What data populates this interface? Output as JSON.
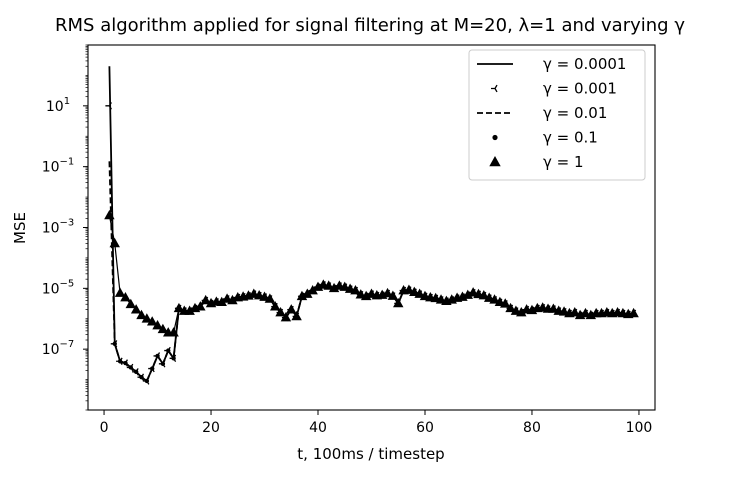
{
  "chart_data": {
    "type": "line",
    "title": "RMS algorithm applied for signal filtering at M=20, λ=1 and varying γ",
    "xlabel": "t, 100ms / timestep",
    "ylabel": "MSE",
    "xlim": [
      -3,
      103
    ],
    "ylim": [
      1e-09,
      1000
    ],
    "yscale": "log",
    "x_ticks": [
      0,
      20,
      40,
      60,
      80,
      100
    ],
    "x_tick_labels": [
      "0",
      "20",
      "40",
      "60",
      "80",
      "100"
    ],
    "y_ticks": [
      1e-07,
      1e-05,
      0.001,
      0.1,
      10
    ],
    "y_tick_bases": [
      "10",
      "10",
      "10",
      "10",
      "10"
    ],
    "y_tick_exponents": [
      "−7",
      "−5",
      "−3",
      "−1",
      "1"
    ],
    "grid": false,
    "legend_position": "top-right",
    "x": [
      1,
      2,
      3,
      4,
      5,
      6,
      7,
      8,
      9,
      10,
      11,
      12,
      13,
      14,
      15,
      16,
      17,
      18,
      19,
      20,
      21,
      22,
      23,
      24,
      25,
      26,
      27,
      28,
      29,
      30,
      31,
      32,
      33,
      34,
      35,
      36,
      37,
      38,
      39,
      40,
      41,
      42,
      43,
      44,
      45,
      46,
      47,
      48,
      49,
      50,
      51,
      52,
      53,
      54,
      55,
      56,
      57,
      58,
      59,
      60,
      61,
      62,
      63,
      64,
      65,
      66,
      67,
      68,
      69,
      70,
      71,
      72,
      73,
      74,
      75,
      76,
      77,
      78,
      79,
      80,
      81,
      82,
      83,
      84,
      85,
      86,
      87,
      88,
      89,
      90,
      91,
      92,
      93,
      94,
      95,
      96,
      97,
      98,
      99
    ],
    "series": [
      {
        "name": "γ = 0.0001",
        "style": "solid",
        "values": [
          200,
          1.5e-07,
          4e-08,
          3.5e-08,
          2.5e-08,
          1.8e-08,
          1.2e-08,
          9e-09,
          2.3e-08,
          6e-08,
          3.3e-08,
          9e-08,
          5e-08,
          2.2e-06,
          1.8e-06,
          1.8e-06,
          2.2e-06,
          2.5e-06,
          4e-06,
          3.2e-06,
          3.6e-06,
          3.5e-06,
          4.5e-06,
          4e-06,
          5e-06,
          5.3e-06,
          5.7e-06,
          6.5e-06,
          5.8e-06,
          5.2e-06,
          4.5e-06,
          2.5e-06,
          1.6e-06,
          1.1e-06,
          2e-06,
          1.2e-06,
          5.5e-06,
          6.5e-06,
          8.5e-06,
          1.1e-05,
          1.3e-05,
          1.2e-05,
          1e-05,
          1.2e-05,
          1.1e-05,
          9.5e-06,
          8.5e-06,
          6.2e-06,
          5.5e-06,
          6.5e-06,
          5.8e-06,
          6e-06,
          6.8e-06,
          5.6e-06,
          3.2e-06,
          8.5e-06,
          8.8e-06,
          7.5e-06,
          6.5e-06,
          5.5e-06,
          5e-06,
          4.7e-06,
          4.2e-06,
          3.8e-06,
          4.2e-06,
          4.8e-06,
          5.2e-06,
          6e-06,
          7.2e-06,
          6.4e-06,
          5.8e-06,
          4.8e-06,
          4.2e-06,
          3.5e-06,
          3.1e-06,
          2.2e-06,
          1.8e-06,
          1.6e-06,
          2e-06,
          1.9e-06,
          2.2e-06,
          2.3e-06,
          2.1e-06,
          2.1e-06,
          1.8e-06,
          1.7e-06,
          1.5e-06,
          1.6e-06,
          1.3e-06,
          1.5e-06,
          1.3e-06,
          1.5e-06,
          1.5e-06,
          1.6e-06,
          1.5e-06,
          1.6e-06,
          1.5e-06,
          1.4e-06,
          1.5e-06
        ]
      },
      {
        "name": "γ = 0.001",
        "style": "tri_left",
        "values": [
          10,
          1.5e-07,
          4e-08,
          3.5e-08,
          2.5e-08,
          1.8e-08,
          1.2e-08,
          9e-09,
          2.3e-08,
          6e-08,
          3.3e-08,
          9e-08,
          5e-08,
          2.2e-06,
          1.8e-06,
          1.8e-06,
          2.2e-06,
          2.5e-06,
          4e-06,
          3.2e-06,
          3.6e-06,
          3.5e-06,
          4.5e-06,
          4e-06,
          5e-06,
          5.3e-06,
          5.7e-06,
          6.5e-06,
          5.8e-06,
          5.2e-06,
          4.5e-06,
          2.5e-06,
          1.6e-06,
          1.1e-06,
          2e-06,
          1.2e-06,
          5.5e-06,
          6.5e-06,
          8.5e-06,
          1.1e-05,
          1.3e-05,
          1.2e-05,
          1e-05,
          1.2e-05,
          1.1e-05,
          9.5e-06,
          8.5e-06,
          6.2e-06,
          5.5e-06,
          6.5e-06,
          5.8e-06,
          6e-06,
          6.8e-06,
          5.6e-06,
          3.2e-06,
          8.5e-06,
          8.8e-06,
          7.5e-06,
          6.5e-06,
          5.5e-06,
          5e-06,
          4.7e-06,
          4.2e-06,
          3.8e-06,
          4.2e-06,
          4.8e-06,
          5.2e-06,
          6e-06,
          7.2e-06,
          6.4e-06,
          5.8e-06,
          4.8e-06,
          4.2e-06,
          3.5e-06,
          3.1e-06,
          2.2e-06,
          1.8e-06,
          1.6e-06,
          2e-06,
          1.9e-06,
          2.2e-06,
          2.3e-06,
          2.1e-06,
          2.1e-06,
          1.8e-06,
          1.7e-06,
          1.5e-06,
          1.6e-06,
          1.3e-06,
          1.5e-06,
          1.3e-06,
          1.5e-06,
          1.5e-06,
          1.6e-06,
          1.5e-06,
          1.6e-06,
          1.5e-06,
          1.4e-06,
          1.5e-06
        ]
      },
      {
        "name": "γ = 0.01",
        "style": "dashed",
        "values": [
          0.15,
          1.5e-07,
          4e-08,
          3.5e-08,
          2.5e-08,
          1.8e-08,
          1.2e-08,
          9e-09,
          2.3e-08,
          6e-08,
          3.3e-08,
          9e-08,
          5e-08,
          2.2e-06,
          1.8e-06,
          1.8e-06,
          2.2e-06,
          2.5e-06,
          4e-06,
          3.2e-06,
          3.6e-06,
          3.5e-06,
          4.5e-06,
          4e-06,
          5e-06,
          5.3e-06,
          5.7e-06,
          6.5e-06,
          5.8e-06,
          5.2e-06,
          4.5e-06,
          2.5e-06,
          1.6e-06,
          1.1e-06,
          2e-06,
          1.2e-06,
          5.5e-06,
          6.5e-06,
          8.5e-06,
          1.1e-05,
          1.3e-05,
          1.2e-05,
          1e-05,
          1.2e-05,
          1.1e-05,
          9.5e-06,
          8.5e-06,
          6.2e-06,
          5.5e-06,
          6.5e-06,
          5.8e-06,
          6e-06,
          6.8e-06,
          5.6e-06,
          3.2e-06,
          8.5e-06,
          8.8e-06,
          7.5e-06,
          6.5e-06,
          5.5e-06,
          5e-06,
          4.7e-06,
          4.2e-06,
          3.8e-06,
          4.2e-06,
          4.8e-06,
          5.2e-06,
          6e-06,
          7.2e-06,
          6.4e-06,
          5.8e-06,
          4.8e-06,
          4.2e-06,
          3.5e-06,
          3.1e-06,
          2.2e-06,
          1.8e-06,
          1.6e-06,
          2e-06,
          1.9e-06,
          2.2e-06,
          2.3e-06,
          2.1e-06,
          2.1e-06,
          1.8e-06,
          1.7e-06,
          1.5e-06,
          1.6e-06,
          1.3e-06,
          1.5e-06,
          1.3e-06,
          1.5e-06,
          1.5e-06,
          1.6e-06,
          1.5e-06,
          1.6e-06,
          1.5e-06,
          1.4e-06,
          1.5e-06
        ]
      },
      {
        "name": "γ = 0.1",
        "style": "dot",
        "values": [
          0.0025,
          1.5e-07,
          4e-08,
          3.5e-08,
          2.5e-08,
          1.8e-08,
          1.2e-08,
          9e-09,
          2.3e-08,
          6e-08,
          3.3e-08,
          9e-08,
          5e-08,
          2.2e-06,
          1.8e-06,
          1.8e-06,
          2.2e-06,
          2.5e-06,
          4e-06,
          3.2e-06,
          3.6e-06,
          3.5e-06,
          4.5e-06,
          4e-06,
          5e-06,
          5.3e-06,
          5.7e-06,
          6.5e-06,
          5.8e-06,
          5.2e-06,
          4.5e-06,
          2.5e-06,
          1.6e-06,
          1.1e-06,
          2e-06,
          1.2e-06,
          5.5e-06,
          6.5e-06,
          8.5e-06,
          1.1e-05,
          1.3e-05,
          1.2e-05,
          1e-05,
          1.2e-05,
          1.1e-05,
          9.5e-06,
          8.5e-06,
          6.2e-06,
          5.5e-06,
          6.5e-06,
          5.8e-06,
          6e-06,
          6.8e-06,
          5.6e-06,
          3.2e-06,
          8.5e-06,
          8.8e-06,
          7.5e-06,
          6.5e-06,
          5.5e-06,
          5e-06,
          4.7e-06,
          4.2e-06,
          3.8e-06,
          4.2e-06,
          4.8e-06,
          5.2e-06,
          6e-06,
          7.2e-06,
          6.4e-06,
          5.8e-06,
          4.8e-06,
          4.2e-06,
          3.5e-06,
          3.1e-06,
          2.2e-06,
          1.8e-06,
          1.6e-06,
          2e-06,
          1.9e-06,
          2.2e-06,
          2.3e-06,
          2.1e-06,
          2.1e-06,
          1.8e-06,
          1.7e-06,
          1.5e-06,
          1.6e-06,
          1.3e-06,
          1.5e-06,
          1.3e-06,
          1.5e-06,
          1.5e-06,
          1.6e-06,
          1.5e-06,
          1.6e-06,
          1.5e-06,
          1.4e-06,
          1.5e-06
        ]
      },
      {
        "name": "γ = 1",
        "style": "triangle",
        "values": [
          0.0025,
          0.0003,
          7e-06,
          5e-06,
          3e-06,
          2e-06,
          1.3e-06,
          1e-06,
          8e-07,
          6e-07,
          4.5e-07,
          3.5e-07,
          3.5e-07,
          2.2e-06,
          1.8e-06,
          1.8e-06,
          2.2e-06,
          2.5e-06,
          4e-06,
          3.2e-06,
          3.6e-06,
          3.5e-06,
          4.5e-06,
          4e-06,
          5e-06,
          5.3e-06,
          5.7e-06,
          6.5e-06,
          5.8e-06,
          5.2e-06,
          4.5e-06,
          2.5e-06,
          1.6e-06,
          1.1e-06,
          2e-06,
          1.2e-06,
          5.5e-06,
          6.5e-06,
          8.5e-06,
          1.1e-05,
          1.3e-05,
          1.2e-05,
          1e-05,
          1.2e-05,
          1.1e-05,
          9.5e-06,
          8.5e-06,
          6.2e-06,
          5.5e-06,
          6.5e-06,
          5.8e-06,
          6e-06,
          6.8e-06,
          5.6e-06,
          3.2e-06,
          8.5e-06,
          8.8e-06,
          7.5e-06,
          6.5e-06,
          5.5e-06,
          5e-06,
          4.7e-06,
          4.2e-06,
          3.8e-06,
          4.2e-06,
          4.8e-06,
          5.2e-06,
          6e-06,
          7.2e-06,
          6.4e-06,
          5.8e-06,
          4.8e-06,
          4.2e-06,
          3.5e-06,
          3.1e-06,
          2.2e-06,
          1.8e-06,
          1.6e-06,
          2e-06,
          1.9e-06,
          2.2e-06,
          2.3e-06,
          2.1e-06,
          2.1e-06,
          1.8e-06,
          1.7e-06,
          1.5e-06,
          1.6e-06,
          1.3e-06,
          1.5e-06,
          1.3e-06,
          1.5e-06,
          1.5e-06,
          1.6e-06,
          1.5e-06,
          1.6e-06,
          1.5e-06,
          1.4e-06,
          1.5e-06
        ]
      }
    ],
    "colors": {
      "line": "#000000",
      "background": "#ffffff",
      "legend_border": "#cccccc"
    }
  }
}
